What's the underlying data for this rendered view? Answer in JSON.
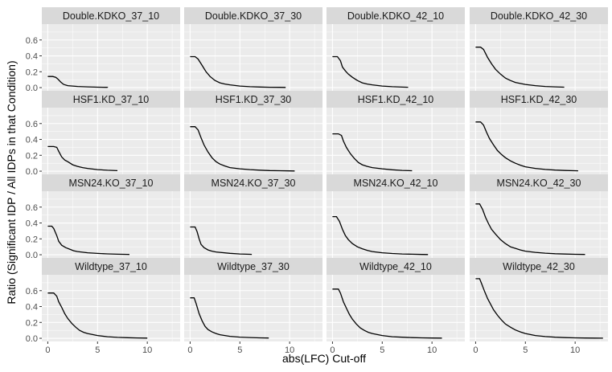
{
  "chart_data": {
    "type": "line",
    "xlabel": "abs(LFC) Cut-off",
    "ylabel": "Ratio (Significant IDP / All IDPs in that Condition)",
    "xlim": [
      -0.6,
      13.3
    ],
    "ylim": [
      -0.04,
      0.8
    ],
    "x_ticks": [
      0,
      5,
      10
    ],
    "x_tick_labels": [
      "0",
      "5",
      "10"
    ],
    "y_ticks": [
      0.0,
      0.2,
      0.4,
      0.6
    ],
    "y_tick_labels": [
      "0.0",
      "0.2",
      "0.4",
      "0.6"
    ],
    "grid": true,
    "facet_rows": 4,
    "facet_cols": 4,
    "panels": [
      {
        "title": "Double.KDKO_37_10",
        "points": [
          [
            0,
            0.14
          ],
          [
            0.5,
            0.14
          ],
          [
            0.8,
            0.13
          ],
          [
            1.0,
            0.11
          ],
          [
            1.3,
            0.07
          ],
          [
            1.6,
            0.04
          ],
          [
            2.0,
            0.025
          ],
          [
            2.5,
            0.02
          ],
          [
            3,
            0.015
          ],
          [
            4,
            0.01
          ],
          [
            5,
            0.006
          ],
          [
            6,
            0.004
          ],
          [
            6.0,
            0.003
          ]
        ]
      },
      {
        "title": "Double.KDKO_37_30",
        "points": [
          [
            0,
            0.39
          ],
          [
            0.5,
            0.39
          ],
          [
            0.8,
            0.36
          ],
          [
            1.2,
            0.28
          ],
          [
            1.6,
            0.2
          ],
          [
            2.0,
            0.14
          ],
          [
            2.5,
            0.09
          ],
          [
            3,
            0.06
          ],
          [
            3.5,
            0.045
          ],
          [
            4,
            0.035
          ],
          [
            5,
            0.02
          ],
          [
            6,
            0.012
          ],
          [
            7,
            0.008
          ],
          [
            8,
            0.005
          ],
          [
            9,
            0.004
          ],
          [
            9.6,
            0.003
          ]
        ]
      },
      {
        "title": "Double.KDKO_42_10",
        "points": [
          [
            0,
            0.39
          ],
          [
            0.5,
            0.39
          ],
          [
            0.8,
            0.34
          ],
          [
            1.0,
            0.26
          ],
          [
            1.3,
            0.21
          ],
          [
            1.6,
            0.17
          ],
          [
            2.0,
            0.13
          ],
          [
            2.5,
            0.09
          ],
          [
            3,
            0.06
          ],
          [
            3.5,
            0.045
          ],
          [
            4,
            0.035
          ],
          [
            5,
            0.02
          ],
          [
            6,
            0.012
          ],
          [
            7,
            0.007
          ],
          [
            7.6,
            0.005
          ]
        ]
      },
      {
        "title": "Double.KDKO_42_30",
        "points": [
          [
            0,
            0.51
          ],
          [
            0.5,
            0.51
          ],
          [
            0.8,
            0.48
          ],
          [
            1.2,
            0.38
          ],
          [
            1.6,
            0.3
          ],
          [
            2.0,
            0.23
          ],
          [
            2.5,
            0.17
          ],
          [
            3,
            0.12
          ],
          [
            3.5,
            0.09
          ],
          [
            4,
            0.065
          ],
          [
            5,
            0.04
          ],
          [
            6,
            0.025
          ],
          [
            7,
            0.015
          ],
          [
            8,
            0.01
          ],
          [
            8.9,
            0.006
          ]
        ]
      },
      {
        "title": "HSF1.KD_37_10",
        "points": [
          [
            0,
            0.31
          ],
          [
            0.6,
            0.31
          ],
          [
            0.9,
            0.3
          ],
          [
            1.1,
            0.25
          ],
          [
            1.4,
            0.18
          ],
          [
            1.7,
            0.14
          ],
          [
            2.0,
            0.12
          ],
          [
            2.5,
            0.08
          ],
          [
            3,
            0.06
          ],
          [
            3.5,
            0.045
          ],
          [
            4,
            0.035
          ],
          [
            5,
            0.02
          ],
          [
            6,
            0.012
          ],
          [
            7,
            0.007
          ]
        ]
      },
      {
        "title": "HSF1.KD_37_30",
        "points": [
          [
            0,
            0.56
          ],
          [
            0.5,
            0.56
          ],
          [
            0.8,
            0.52
          ],
          [
            1.1,
            0.42
          ],
          [
            1.4,
            0.33
          ],
          [
            1.8,
            0.24
          ],
          [
            2.2,
            0.17
          ],
          [
            2.6,
            0.12
          ],
          [
            3,
            0.09
          ],
          [
            3.5,
            0.065
          ],
          [
            4,
            0.045
          ],
          [
            5,
            0.03
          ],
          [
            6,
            0.02
          ],
          [
            7,
            0.013
          ],
          [
            8,
            0.008
          ],
          [
            9,
            0.006
          ],
          [
            10,
            0.004
          ],
          [
            10.5,
            0.003
          ]
        ]
      },
      {
        "title": "HSF1.KD_42_10",
        "points": [
          [
            0,
            0.47
          ],
          [
            0.6,
            0.47
          ],
          [
            0.9,
            0.45
          ],
          [
            1.1,
            0.38
          ],
          [
            1.4,
            0.3
          ],
          [
            1.8,
            0.22
          ],
          [
            2.2,
            0.16
          ],
          [
            2.6,
            0.11
          ],
          [
            3,
            0.08
          ],
          [
            3.5,
            0.06
          ],
          [
            4,
            0.045
          ],
          [
            5,
            0.03
          ],
          [
            6,
            0.018
          ],
          [
            7,
            0.01
          ],
          [
            8,
            0.006
          ]
        ]
      },
      {
        "title": "HSF1.KD_42_30",
        "points": [
          [
            0,
            0.62
          ],
          [
            0.5,
            0.62
          ],
          [
            0.8,
            0.58
          ],
          [
            1.1,
            0.49
          ],
          [
            1.4,
            0.41
          ],
          [
            1.8,
            0.33
          ],
          [
            2.2,
            0.26
          ],
          [
            2.6,
            0.21
          ],
          [
            3,
            0.17
          ],
          [
            3.5,
            0.13
          ],
          [
            4,
            0.1
          ],
          [
            4.5,
            0.075
          ],
          [
            5,
            0.055
          ],
          [
            6,
            0.035
          ],
          [
            7,
            0.022
          ],
          [
            8,
            0.014
          ],
          [
            9,
            0.009
          ],
          [
            10,
            0.006
          ],
          [
            10.3,
            0.005
          ]
        ]
      },
      {
        "title": "MSN24.KO_37_10",
        "points": [
          [
            0,
            0.36
          ],
          [
            0.4,
            0.36
          ],
          [
            0.6,
            0.33
          ],
          [
            0.9,
            0.24
          ],
          [
            1.1,
            0.17
          ],
          [
            1.4,
            0.12
          ],
          [
            1.8,
            0.09
          ],
          [
            2.2,
            0.07
          ],
          [
            2.6,
            0.05
          ],
          [
            3,
            0.04
          ],
          [
            4,
            0.025
          ],
          [
            5,
            0.017
          ],
          [
            6,
            0.011
          ],
          [
            7,
            0.007
          ],
          [
            8,
            0.005
          ],
          [
            8.2,
            0.004
          ]
        ]
      },
      {
        "title": "MSN24.KO_37_30",
        "points": [
          [
            0,
            0.35
          ],
          [
            0.5,
            0.35
          ],
          [
            0.7,
            0.29
          ],
          [
            0.9,
            0.2
          ],
          [
            1.1,
            0.13
          ],
          [
            1.4,
            0.09
          ],
          [
            1.8,
            0.06
          ],
          [
            2.2,
            0.045
          ],
          [
            2.6,
            0.035
          ],
          [
            3,
            0.03
          ],
          [
            4,
            0.018
          ],
          [
            5,
            0.01
          ],
          [
            6,
            0.006
          ],
          [
            6.2,
            0.005
          ]
        ]
      },
      {
        "title": "MSN24.KO_42_10",
        "points": [
          [
            0,
            0.48
          ],
          [
            0.4,
            0.48
          ],
          [
            0.7,
            0.42
          ],
          [
            1.0,
            0.32
          ],
          [
            1.3,
            0.24
          ],
          [
            1.6,
            0.19
          ],
          [
            2.0,
            0.14
          ],
          [
            2.5,
            0.1
          ],
          [
            3,
            0.075
          ],
          [
            3.5,
            0.055
          ],
          [
            4,
            0.04
          ],
          [
            5,
            0.025
          ],
          [
            6,
            0.016
          ],
          [
            7,
            0.01
          ],
          [
            8,
            0.007
          ],
          [
            9,
            0.004
          ],
          [
            9.6,
            0.003
          ]
        ]
      },
      {
        "title": "MSN24.KO_42_30",
        "points": [
          [
            0,
            0.64
          ],
          [
            0.4,
            0.64
          ],
          [
            0.7,
            0.57
          ],
          [
            1.0,
            0.47
          ],
          [
            1.3,
            0.39
          ],
          [
            1.6,
            0.32
          ],
          [
            2.0,
            0.26
          ],
          [
            2.5,
            0.19
          ],
          [
            3,
            0.14
          ],
          [
            3.5,
            0.1
          ],
          [
            4,
            0.08
          ],
          [
            4.5,
            0.06
          ],
          [
            5,
            0.045
          ],
          [
            6,
            0.03
          ],
          [
            7,
            0.02
          ],
          [
            8,
            0.013
          ],
          [
            9,
            0.009
          ],
          [
            10,
            0.006
          ],
          [
            11,
            0.004
          ]
        ]
      },
      {
        "title": "Wildtype_37_10",
        "points": [
          [
            0,
            0.57
          ],
          [
            0.6,
            0.57
          ],
          [
            0.9,
            0.53
          ],
          [
            1.1,
            0.46
          ],
          [
            1.4,
            0.39
          ],
          [
            1.7,
            0.31
          ],
          [
            2.0,
            0.25
          ],
          [
            2.4,
            0.19
          ],
          [
            2.8,
            0.14
          ],
          [
            3.2,
            0.1
          ],
          [
            3.6,
            0.075
          ],
          [
            4,
            0.06
          ],
          [
            5,
            0.035
          ],
          [
            6,
            0.02
          ],
          [
            7,
            0.012
          ],
          [
            8,
            0.008
          ],
          [
            9,
            0.005
          ],
          [
            10,
            0.003
          ]
        ]
      },
      {
        "title": "Wildtype_37_30",
        "points": [
          [
            0,
            0.51
          ],
          [
            0.4,
            0.51
          ],
          [
            0.6,
            0.44
          ],
          [
            0.9,
            0.31
          ],
          [
            1.2,
            0.22
          ],
          [
            1.5,
            0.15
          ],
          [
            1.8,
            0.11
          ],
          [
            2.2,
            0.08
          ],
          [
            2.6,
            0.06
          ],
          [
            3,
            0.045
          ],
          [
            3.5,
            0.035
          ],
          [
            4,
            0.025
          ],
          [
            5,
            0.015
          ],
          [
            6,
            0.01
          ],
          [
            7,
            0.006
          ],
          [
            7.9,
            0.004
          ]
        ]
      },
      {
        "title": "Wildtype_42_10",
        "points": [
          [
            0,
            0.62
          ],
          [
            0.6,
            0.62
          ],
          [
            0.8,
            0.57
          ],
          [
            1.1,
            0.46
          ],
          [
            1.4,
            0.38
          ],
          [
            1.7,
            0.3
          ],
          [
            2.0,
            0.24
          ],
          [
            2.4,
            0.18
          ],
          [
            2.8,
            0.13
          ],
          [
            3.2,
            0.1
          ],
          [
            3.6,
            0.075
          ],
          [
            4,
            0.06
          ],
          [
            5,
            0.035
          ],
          [
            6,
            0.02
          ],
          [
            7,
            0.014
          ],
          [
            8,
            0.009
          ],
          [
            9,
            0.006
          ],
          [
            10,
            0.004
          ],
          [
            11,
            0.003
          ]
        ]
      },
      {
        "title": "Wildtype_42_30",
        "points": [
          [
            0,
            0.75
          ],
          [
            0.4,
            0.75
          ],
          [
            0.6,
            0.69
          ],
          [
            0.9,
            0.59
          ],
          [
            1.2,
            0.5
          ],
          [
            1.5,
            0.43
          ],
          [
            1.8,
            0.36
          ],
          [
            2.2,
            0.29
          ],
          [
            2.6,
            0.23
          ],
          [
            3,
            0.18
          ],
          [
            3.5,
            0.14
          ],
          [
            4,
            0.105
          ],
          [
            4.5,
            0.08
          ],
          [
            5,
            0.06
          ],
          [
            6,
            0.035
          ],
          [
            7,
            0.022
          ],
          [
            8,
            0.014
          ],
          [
            9,
            0.009
          ],
          [
            10,
            0.006
          ],
          [
            11,
            0.004
          ],
          [
            12,
            0.003
          ],
          [
            12.8,
            0.002
          ]
        ]
      }
    ]
  }
}
